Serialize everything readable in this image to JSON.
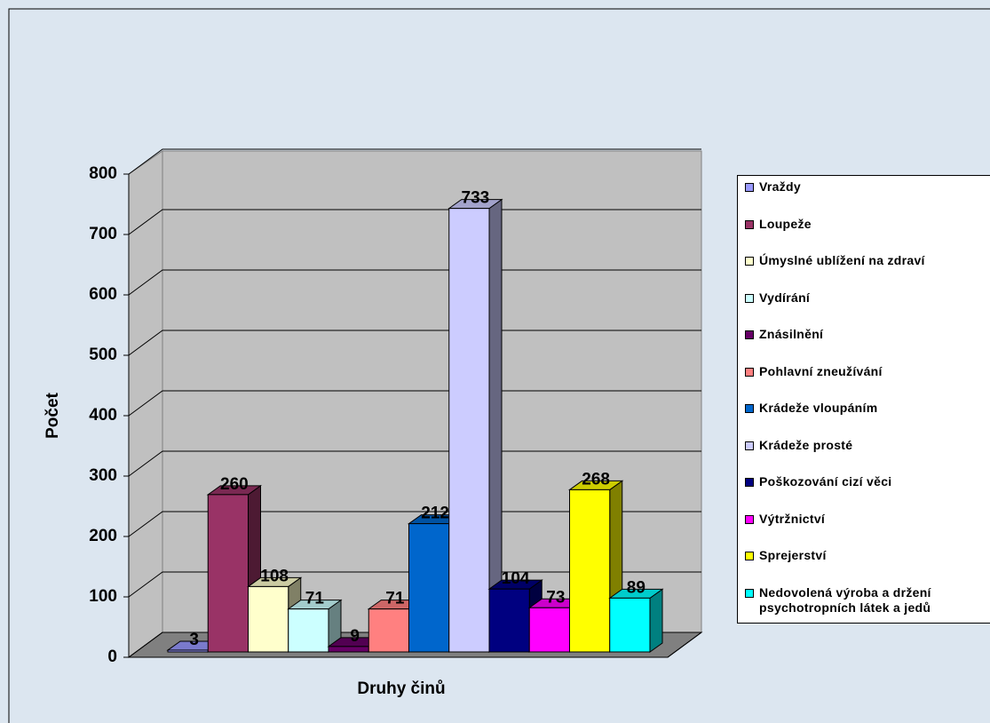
{
  "chart_data": {
    "type": "bar3d",
    "xlabel": "Druhy činů",
    "ylabel": "Počet",
    "ylim": [
      0,
      800
    ],
    "yticks": [
      0,
      100,
      200,
      300,
      400,
      500,
      600,
      700,
      800
    ],
    "grid": true,
    "legend": "right",
    "series": [
      {
        "name": "Vraždy",
        "color": "#9999ff",
        "values": [
          3
        ]
      },
      {
        "name": "Loupeže",
        "color": "#993366",
        "values": [
          260
        ]
      },
      {
        "name": "Úmyslné ublížení na zdraví",
        "color": "#ffffcc",
        "values": [
          108
        ]
      },
      {
        "name": "Vydírání",
        "color": "#ccffff",
        "values": [
          71
        ]
      },
      {
        "name": "Znásilnění",
        "color": "#660066",
        "values": [
          9
        ]
      },
      {
        "name": "Pohlavní zneužívání",
        "color": "#ff8080",
        "values": [
          71
        ]
      },
      {
        "name": "Krádeže vloupáním",
        "color": "#0066cc",
        "values": [
          212
        ]
      },
      {
        "name": "Krádeže prosté",
        "color": "#ccccff",
        "values": [
          733
        ]
      },
      {
        "name": "Poškozování cizí věci",
        "color": "#000080",
        "values": [
          104
        ]
      },
      {
        "name": "Výtržnictví",
        "color": "#ff00ff",
        "values": [
          73
        ]
      },
      {
        "name": "Sprejerství",
        "color": "#ffff00",
        "values": [
          268
        ]
      },
      {
        "name": "Nedovolená výroba a držení\npsychotropních látek a jedů",
        "color": "#00ffff",
        "values": [
          89
        ]
      }
    ]
  }
}
